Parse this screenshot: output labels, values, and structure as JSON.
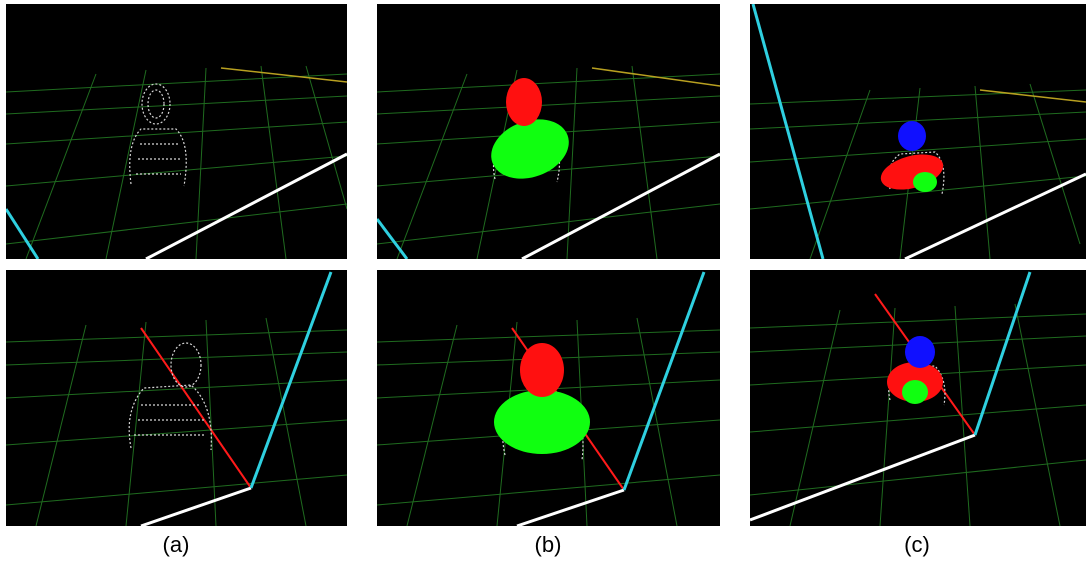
{
  "captions": {
    "a": "(a)",
    "b": "(b)",
    "c": "(c)"
  },
  "colors": {
    "background": "#000000",
    "grid": "#1f6b1f",
    "point_cloud": "#d8d8d8",
    "axis_white": "#ffffff",
    "axis_cyan": "#2fd0e0",
    "axis_red": "#ff1a1a",
    "axis_yellow": "#b8a020",
    "ellipsoid_red": "#ff1010",
    "ellipsoid_green": "#10ff10",
    "ellipsoid_blue": "#1010ff"
  },
  "panels": [
    {
      "id": "a-top",
      "column": "a",
      "row": "top",
      "ellipsoids": []
    },
    {
      "id": "b-top",
      "column": "b",
      "row": "top",
      "ellipsoids": [
        "red",
        "green"
      ]
    },
    {
      "id": "c-top",
      "column": "c",
      "row": "top",
      "ellipsoids": [
        "blue",
        "red",
        "green"
      ]
    },
    {
      "id": "a-bot",
      "column": "a",
      "row": "bottom",
      "ellipsoids": []
    },
    {
      "id": "b-bot",
      "column": "b",
      "row": "bottom",
      "ellipsoids": [
        "red",
        "green"
      ]
    },
    {
      "id": "c-bot",
      "column": "c",
      "row": "bottom",
      "ellipsoids": [
        "blue",
        "red",
        "green"
      ]
    }
  ]
}
